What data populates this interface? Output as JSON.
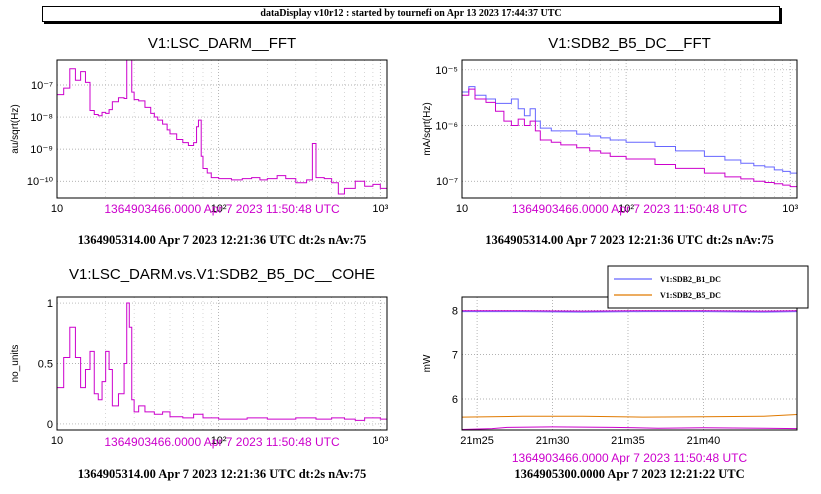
{
  "banner": "dataDisplay v10r12 : started by tournefi on Apr 13 2023 17:44:37 UTC",
  "colors": {
    "series_primary": "#cc00cc",
    "series_secondary": "#6666ff",
    "series_b5": "#e07a00",
    "subtitle": "#cc00cc"
  },
  "chart_data": [
    {
      "type": "line",
      "title": "V1:LSC_DARM__FFT",
      "xlabel": "",
      "ylabel": "au/sqrt(Hz)",
      "xscale": "log",
      "yscale": "log",
      "xlim": [
        10,
        1100
      ],
      "ylim": [
        3e-11,
        6e-07
      ],
      "xticks": [
        {
          "v": 10,
          "l": "10"
        },
        {
          "v": 100,
          "l": "10²"
        },
        {
          "v": 1000,
          "l": "10³"
        }
      ],
      "yticks": [
        {
          "v": 1e-10,
          "l": "10⁻¹⁰"
        },
        {
          "v": 1e-09,
          "l": "10⁻⁹"
        },
        {
          "v": 1e-08,
          "l": "10⁻⁸"
        },
        {
          "v": 1e-07,
          "l": "10⁻⁷"
        }
      ],
      "grid": true,
      "subtitle_ref": "1364903466.0000 Apr 7 2023 11:50:48 UTC",
      "footer": "1364905314.00 Apr 7 2023 12:21:36 UTC dt:2s nAv:75",
      "series": [
        {
          "color": "#cc00cc",
          "style": "step",
          "x": [
            10,
            11,
            12,
            13,
            14,
            15,
            16,
            17,
            18,
            19,
            20,
            21,
            22,
            24,
            26,
            27,
            28,
            29,
            30,
            32,
            35,
            38,
            40,
            42,
            45,
            48,
            50,
            55,
            60,
            65,
            70,
            73,
            75,
            78,
            80,
            85,
            90,
            100,
            110,
            120,
            140,
            160,
            180,
            200,
            230,
            260,
            300,
            350,
            380,
            400,
            450,
            500,
            550,
            600,
            700,
            800,
            900,
            1000,
            1100
          ],
          "y": [
            5e-08,
            8e-08,
            3.2e-07,
            1.4e-07,
            2.6e-07,
            1.2e-07,
            1.6e-08,
            1.2e-08,
            1.1e-08,
            1.4e-08,
            1.3e-08,
            1.7e-08,
            3e-08,
            4e-08,
            3.8e-08,
            6e-07,
            6e-07,
            6e-08,
            3.5e-08,
            3.2e-08,
            2e-08,
            1.3e-08,
            1e-08,
            8e-09,
            6e-09,
            4e-09,
            3e-09,
            2e-09,
            1.6e-09,
            1.3e-09,
            1.6e-09,
            5e-09,
            8e-09,
            6e-10,
            2.5e-10,
            1.8e-10,
            1.3e-10,
            1.2e-10,
            1.2e-10,
            1.1e-10,
            1.2e-10,
            1.3e-10,
            1.1e-10,
            1.2e-10,
            1.5e-10,
            1.2e-10,
            9e-11,
            1.1e-10,
            1.5e-09,
            1.3e-10,
            1.2e-10,
            9e-11,
            4e-11,
            6e-11,
            1e-10,
            7e-11,
            8e-11,
            6e-11,
            5e-11
          ]
        }
      ]
    },
    {
      "type": "line",
      "title": "V1:SDB2_B5_DC__FFT",
      "xlabel": "",
      "ylabel": "mA/sqrt(Hz)",
      "xscale": "log",
      "yscale": "log",
      "xlim": [
        10,
        1100
      ],
      "ylim": [
        5e-08,
        1.5e-05
      ],
      "xticks": [
        {
          "v": 10,
          "l": "10"
        },
        {
          "v": 100,
          "l": "10²"
        },
        {
          "v": 1000,
          "l": "10³"
        }
      ],
      "yticks": [
        {
          "v": 1e-07,
          "l": "10⁻⁷"
        },
        {
          "v": 1e-06,
          "l": "10⁻⁶"
        },
        {
          "v": 1e-05,
          "l": "10⁻⁵"
        }
      ],
      "grid": true,
      "subtitle_ref": "1364903466.0000 Apr 7 2023 11:50:48 UTC",
      "footer": "1364905314.00 Apr 7 2023 12:21:36 UTC dt:2s nAv:75",
      "series": [
        {
          "color": "#6666ff",
          "style": "step",
          "x": [
            10,
            11,
            12,
            14,
            16,
            18,
            20,
            22,
            24,
            26,
            28,
            30,
            35,
            40,
            50,
            60,
            70,
            80,
            100,
            150,
            200,
            300,
            400,
            500,
            600,
            700,
            800,
            900,
            1000,
            1100
          ],
          "y": [
            4e-06,
            5e-06,
            3.5e-06,
            3e-06,
            2.5e-06,
            2.5e-06,
            3e-06,
            2e-06,
            1.5e-06,
            2e-06,
            1.2e-06,
            9e-07,
            8e-07,
            8e-07,
            7e-07,
            6.5e-07,
            6e-07,
            5.5e-07,
            5e-07,
            4.2e-07,
            3.5e-07,
            2.8e-07,
            2.4e-07,
            2.1e-07,
            1.9e-07,
            1.8e-07,
            1.6e-07,
            1.5e-07,
            1.4e-07,
            1.3e-07
          ]
        },
        {
          "color": "#cc00cc",
          "style": "step",
          "x": [
            10,
            11,
            12,
            14,
            16,
            18,
            20,
            22,
            24,
            26,
            28,
            30,
            35,
            40,
            50,
            60,
            70,
            80,
            100,
            150,
            200,
            300,
            400,
            500,
            600,
            700,
            800,
            900,
            1000,
            1100
          ],
          "y": [
            3.5e-06,
            4.5e-06,
            3e-06,
            2.6e-06,
            1.8e-06,
            1.2e-06,
            1e-06,
            1.3e-06,
            1e-06,
            1.2e-06,
            8e-07,
            5.5e-07,
            5e-07,
            4.5e-07,
            4e-07,
            3.5e-07,
            3.2e-07,
            2.8e-07,
            2.5e-07,
            2e-07,
            1.7e-07,
            1.4e-07,
            1.2e-07,
            1.1e-07,
            1e-07,
            9.5e-08,
            9e-08,
            8.5e-08,
            8e-08,
            7.5e-08
          ]
        }
      ]
    },
    {
      "type": "line",
      "title": "V1:LSC_DARM.vs.V1:SDB2_B5_DC__COHE",
      "xlabel": "",
      "ylabel": "no_units",
      "xscale": "log",
      "yscale": "linear",
      "xlim": [
        10,
        1100
      ],
      "ylim": [
        -0.05,
        1.05
      ],
      "xticks": [
        {
          "v": 10,
          "l": "10"
        },
        {
          "v": 100,
          "l": "10²"
        },
        {
          "v": 1000,
          "l": "10³"
        }
      ],
      "yticks": [
        {
          "v": 0,
          "l": "0"
        },
        {
          "v": 0.5,
          "l": "0.5"
        },
        {
          "v": 1,
          "l": "1"
        }
      ],
      "grid": true,
      "subtitle_ref": "1364903466.0000 Apr 7 2023 11:50:48 UTC",
      "footer": "1364905314.00 Apr 7 2023 12:21:36 UTC dt:2s nAv:75",
      "series": [
        {
          "color": "#cc00cc",
          "style": "step",
          "x": [
            10,
            11,
            12,
            13,
            14,
            15,
            16,
            17,
            18,
            19,
            20,
            21,
            22,
            24,
            26,
            27,
            28,
            29,
            30,
            32,
            35,
            40,
            45,
            50,
            60,
            70,
            80,
            100,
            150,
            200,
            300,
            400,
            500,
            600,
            700,
            800,
            1000,
            1100
          ],
          "y": [
            0.3,
            0.55,
            0.8,
            0.55,
            0.3,
            0.45,
            0.6,
            0.25,
            0.2,
            0.35,
            0.6,
            0.45,
            0.15,
            0.25,
            0.5,
            1.0,
            0.8,
            0.2,
            0.1,
            0.15,
            0.1,
            0.08,
            0.1,
            0.06,
            0.05,
            0.08,
            0.05,
            0.04,
            0.05,
            0.04,
            0.05,
            0.04,
            0.05,
            0.04,
            0.03,
            0.05,
            0.04,
            0.03
          ]
        }
      ]
    },
    {
      "type": "line",
      "title": "",
      "xlabel": "",
      "ylabel": "mW",
      "xscale": "linear",
      "yscale": "linear",
      "xlim": [
        20.0,
        42.2
      ],
      "ylim": [
        5.3,
        8.3
      ],
      "xticks": [
        {
          "v": 21,
          "l": "21m25"
        },
        {
          "v": 26,
          "l": "21m30"
        },
        {
          "v": 31,
          "l": "21m35"
        },
        {
          "v": 36,
          "l": "21m40"
        }
      ],
      "yticks": [
        {
          "v": 6,
          "l": "6"
        },
        {
          "v": 7,
          "l": "7"
        },
        {
          "v": 8,
          "l": "8"
        }
      ],
      "grid": true,
      "legend_position": "top-right",
      "subtitle_ref": "1364903466.0000 Apr 7 2023 11:50:48 UTC",
      "footer": "1364905300.0000 Apr 7 2023 12:21:22 UTC",
      "series": [
        {
          "name": "V1:SDB2_B1_DC",
          "color": "#6666ff",
          "x": [
            20.0,
            24.0,
            28.0,
            32.0,
            36.0,
            40.0,
            42.2
          ],
          "y": [
            7.97,
            7.97,
            7.96,
            7.97,
            7.97,
            7.96,
            7.97
          ]
        },
        {
          "name": "V1:SDB2_B5_DC",
          "color": "#e07a00",
          "x": [
            20.0,
            24.0,
            28.0,
            32.0,
            36.0,
            40.0,
            42.2
          ],
          "y": [
            5.59,
            5.61,
            5.61,
            5.59,
            5.6,
            5.61,
            5.65
          ]
        },
        {
          "name": "",
          "color": "#cc00cc",
          "x": [
            20.0,
            24.0,
            28.0,
            32.0,
            36.0,
            40.0,
            42.2
          ],
          "y": [
            7.99,
            7.99,
            7.98,
            7.99,
            7.99,
            7.98,
            7.99
          ]
        },
        {
          "name": "",
          "color": "#cc00cc",
          "x": [
            20.0,
            22.0,
            23.0,
            26.0,
            30.0,
            33.0,
            36.0,
            40.0,
            42.2
          ],
          "y": [
            5.31,
            5.33,
            5.36,
            5.37,
            5.36,
            5.34,
            5.35,
            5.34,
            5.33
          ]
        }
      ]
    }
  ]
}
